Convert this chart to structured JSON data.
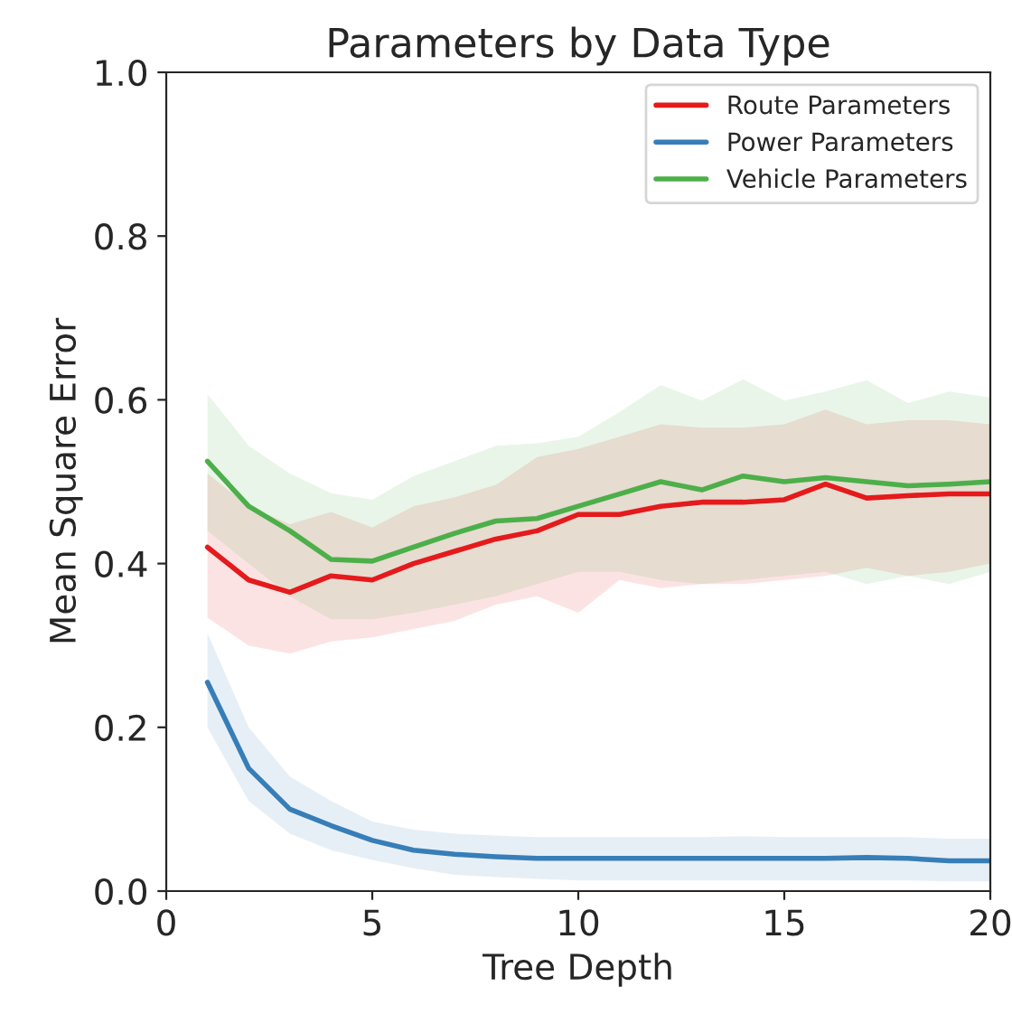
{
  "chart_data": {
    "type": "line",
    "title": "Parameters by Data Type",
    "xlabel": "Tree Depth",
    "ylabel": "Mean Square Error",
    "x": [
      1,
      2,
      3,
      4,
      5,
      6,
      7,
      8,
      9,
      10,
      11,
      12,
      13,
      14,
      15,
      16,
      17,
      18,
      19,
      20
    ],
    "series": [
      {
        "name": "Route Parameters",
        "color": "#e41a1c",
        "values": [
          0.42,
          0.38,
          0.365,
          0.385,
          0.38,
          0.4,
          0.415,
          0.43,
          0.44,
          0.46,
          0.46,
          0.47,
          0.475,
          0.475,
          0.478,
          0.497,
          0.48,
          0.483,
          0.485,
          0.485
        ],
        "lower": [
          0.334,
          0.3,
          0.29,
          0.305,
          0.31,
          0.32,
          0.33,
          0.35,
          0.36,
          0.34,
          0.38,
          0.37,
          0.375,
          0.375,
          0.38,
          0.385,
          0.395,
          0.385,
          0.39,
          0.4
        ],
        "upper": [
          0.51,
          0.47,
          0.448,
          0.463,
          0.444,
          0.47,
          0.481,
          0.496,
          0.53,
          0.54,
          0.555,
          0.57,
          0.566,
          0.566,
          0.57,
          0.588,
          0.57,
          0.575,
          0.575,
          0.57
        ]
      },
      {
        "name": "Power Parameters",
        "color": "#377eb8",
        "values": [
          0.255,
          0.15,
          0.1,
          0.08,
          0.062,
          0.05,
          0.045,
          0.042,
          0.04,
          0.04,
          0.04,
          0.04,
          0.04,
          0.04,
          0.04,
          0.04,
          0.041,
          0.04,
          0.037,
          0.037
        ],
        "lower": [
          0.2,
          0.11,
          0.07,
          0.05,
          0.038,
          0.028,
          0.02,
          0.017,
          0.015,
          0.013,
          0.013,
          0.013,
          0.013,
          0.013,
          0.013,
          0.013,
          0.013,
          0.013,
          0.012,
          0.012
        ],
        "upper": [
          0.315,
          0.2,
          0.14,
          0.11,
          0.085,
          0.075,
          0.07,
          0.068,
          0.066,
          0.066,
          0.066,
          0.066,
          0.066,
          0.067,
          0.066,
          0.066,
          0.066,
          0.066,
          0.064,
          0.064
        ]
      },
      {
        "name": "Vehicle Parameters",
        "color": "#4daf4a",
        "values": [
          0.525,
          0.47,
          0.44,
          0.405,
          0.403,
          0.42,
          0.437,
          0.452,
          0.455,
          0.47,
          0.485,
          0.5,
          0.49,
          0.507,
          0.5,
          0.505,
          0.5,
          0.495,
          0.497,
          0.5
        ],
        "lower": [
          0.44,
          0.4,
          0.36,
          0.332,
          0.332,
          0.34,
          0.35,
          0.36,
          0.375,
          0.39,
          0.39,
          0.38,
          0.375,
          0.38,
          0.385,
          0.39,
          0.375,
          0.385,
          0.375,
          0.39
        ],
        "upper": [
          0.607,
          0.544,
          0.51,
          0.486,
          0.478,
          0.507,
          0.525,
          0.544,
          0.547,
          0.555,
          0.585,
          0.618,
          0.599,
          0.625,
          0.599,
          0.61,
          0.624,
          0.596,
          0.61,
          0.603
        ]
      }
    ],
    "xlim": [
      0,
      20
    ],
    "xticks": [
      0,
      5,
      10,
      15,
      20
    ],
    "ylim": [
      0,
      1
    ],
    "yticks": [
      {
        "value": 0,
        "label": "0.0"
      },
      {
        "value": 0.2,
        "label": "0.2"
      },
      {
        "value": 0.4,
        "label": "0.4"
      },
      {
        "value": 0.6,
        "label": "0.6"
      },
      {
        "value": 0.8,
        "label": "0.8"
      },
      {
        "value": 1,
        "label": "1.0"
      }
    ],
    "grid": false,
    "legend": "top right",
    "marker": "none",
    "line_style": "solid"
  }
}
